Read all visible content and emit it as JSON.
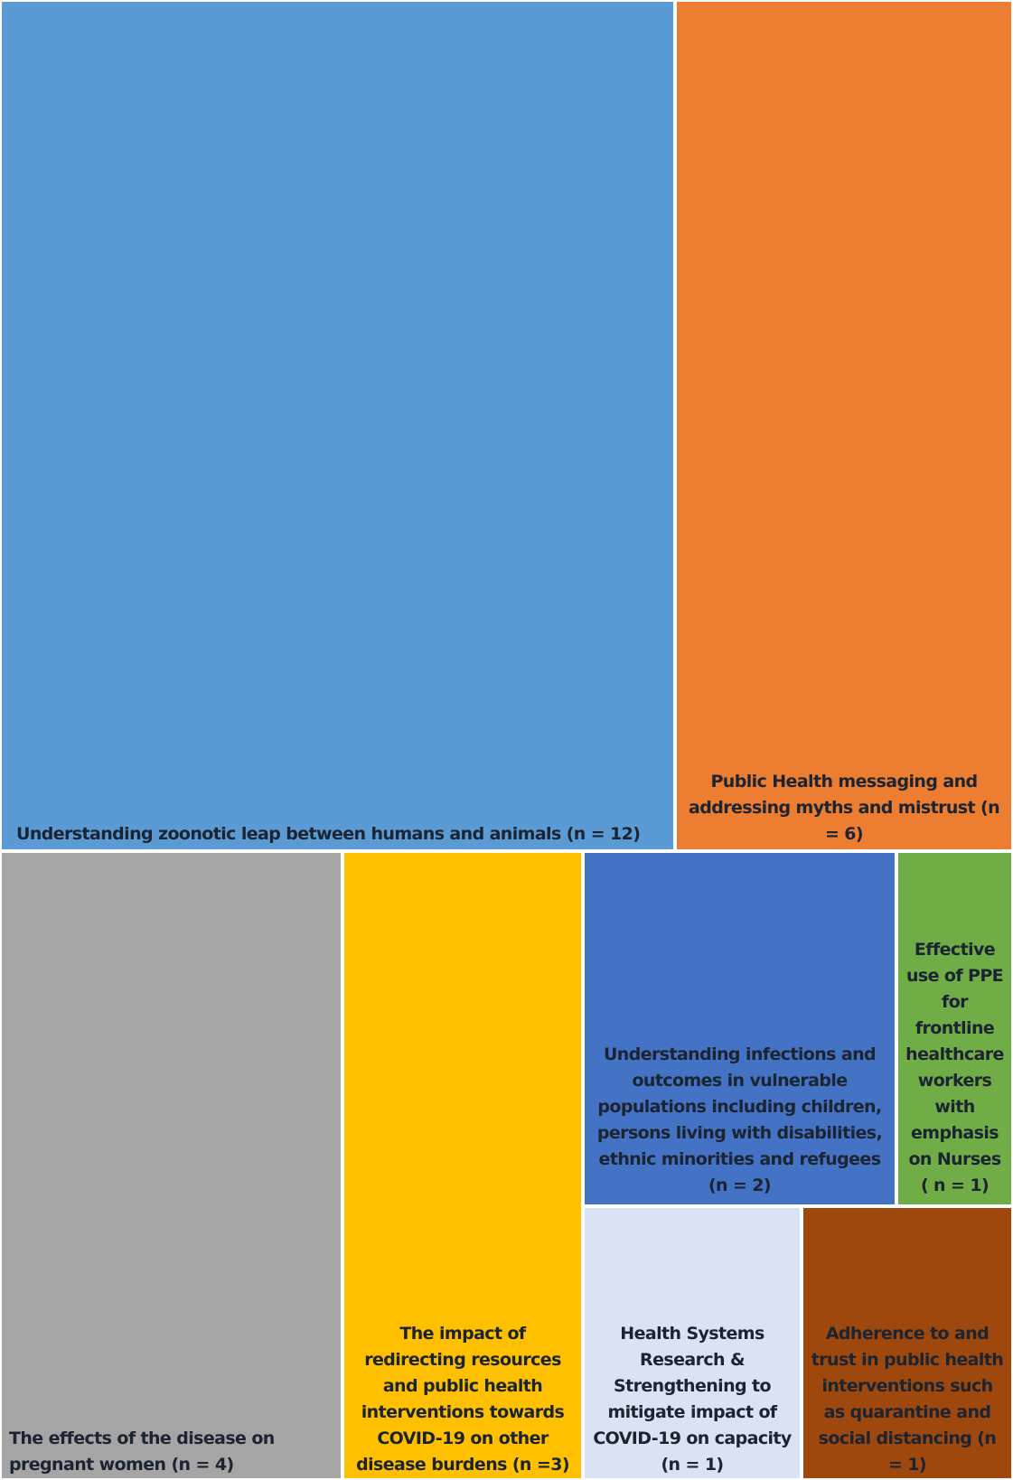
{
  "chart_data": {
    "type": "treemap",
    "items": [
      {
        "label": "Understanding zoonotic leap between humans and animals (n = 12)",
        "value": 12,
        "color": "#5b9bd5"
      },
      {
        "label": "Public Health messaging and addressing myths and mistrust (n = 6)",
        "value": 6,
        "color": "#ed7d31"
      },
      {
        "label": "The effects of the disease on pregnant women (n = 4)",
        "value": 4,
        "color": "#a5a5a5"
      },
      {
        "label": "The impact of redirecting resources and public health interventions towards COVID-19 on other disease burdens (n =3)",
        "value": 3,
        "color": "#ffc000"
      },
      {
        "label": "Understanding infections and outcomes in vulnerable populations including children, persons living with disabilities, ethnic minorities and refugees (n = 2)",
        "value": 2,
        "color": "#4472c4"
      },
      {
        "label": "Effective use of PPE for frontline healthcare workers with emphasis on Nurses ( n = 1)",
        "value": 1,
        "color": "#70ad47"
      },
      {
        "label": "Health Systems Research & Strengthening to mitigate impact of COVID-19 on capacity (n = 1)",
        "value": 1,
        "color": "#dae3f3"
      },
      {
        "label": "Adherence to and trust in public health interventions such as quarantine and social distancing (n = 1)",
        "value": 1,
        "color": "#9e480e"
      }
    ]
  }
}
